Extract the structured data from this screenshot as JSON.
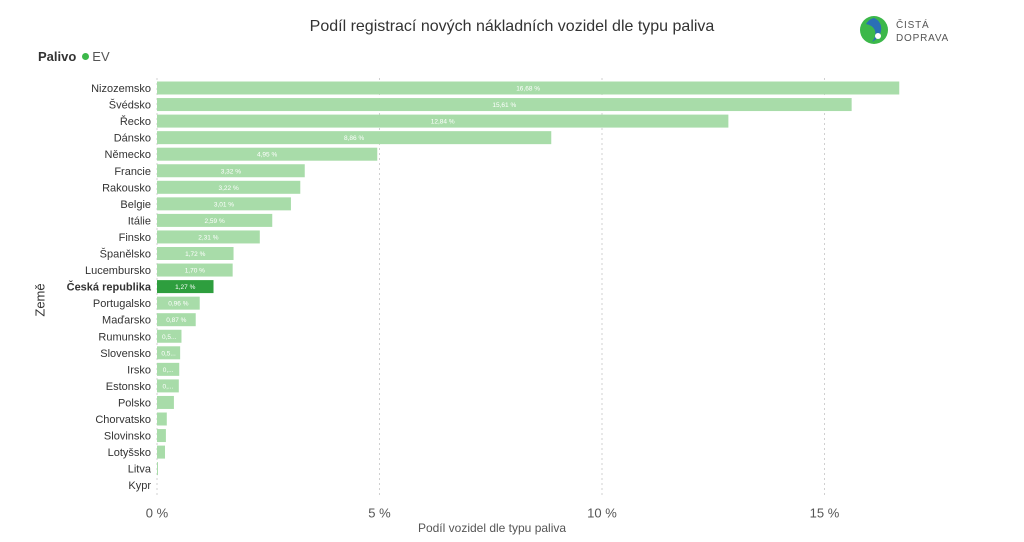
{
  "header": {
    "title": "Podíl registrací nových nákladních vozidel dle typu paliva",
    "logo_line1": "ČISTÁ",
    "logo_line2": "DOPRAVA"
  },
  "legend": {
    "title": "Palivo",
    "items": [
      {
        "label": "EV",
        "color": "#3cb84a"
      }
    ]
  },
  "colors": {
    "bar": "#a8dca9",
    "highlight_bar": "#2e9e3e",
    "grid": "#d0d0d0",
    "logo_green": "#3cb84a",
    "logo_blue": "#2a6fb5"
  },
  "chart_data": {
    "type": "bar",
    "orientation": "horizontal",
    "title": "Podíl registrací nových nákladních vozidel dle typu paliva",
    "xlabel": "Podíl vozidel dle typu paliva",
    "ylabel": "Země",
    "xlim": [
      0,
      17
    ],
    "xticks": [
      0,
      5,
      10,
      15
    ],
    "xtick_labels": [
      "0 %",
      "5 %",
      "10 %",
      "15 %"
    ],
    "grid": "vertical dashed",
    "highlight": "Česká republika",
    "categories": [
      "Nizozemsko",
      "Švédsko",
      "Řecko",
      "Dánsko",
      "Německo",
      "Francie",
      "Rakousko",
      "Belgie",
      "Itálie",
      "Finsko",
      "Španělsko",
      "Lucembursko",
      "Česká republika",
      "Portugalsko",
      "Maďarsko",
      "Rumunsko",
      "Slovensko",
      "Irsko",
      "Estonsko",
      "Polsko",
      "Chorvatsko",
      "Slovinsko",
      "Lotyšsko",
      "Litva",
      "Kypr"
    ],
    "series": [
      {
        "name": "EV",
        "values": [
          16.68,
          15.61,
          12.84,
          8.86,
          4.95,
          3.32,
          3.22,
          3.01,
          2.59,
          2.31,
          1.72,
          1.7,
          1.27,
          0.96,
          0.87,
          0.55,
          0.52,
          0.5,
          0.49,
          0.38,
          0.22,
          0.2,
          0.18,
          0.02,
          0.0
        ],
        "data_labels": [
          "16,68 %",
          "15,61 %",
          "12,84 %",
          "8,86 %",
          "4,95 %",
          "3,32 %",
          "3,22 %",
          "3,01 %",
          "2,59 %",
          "2,31 %",
          "1,72 %",
          "1,70 %",
          "1,27 %",
          "0,96 %",
          "0,87 %",
          "0,5...",
          "0,5...",
          "0,...",
          "0,...",
          "",
          "",
          "",
          "",
          "",
          ""
        ]
      }
    ]
  }
}
